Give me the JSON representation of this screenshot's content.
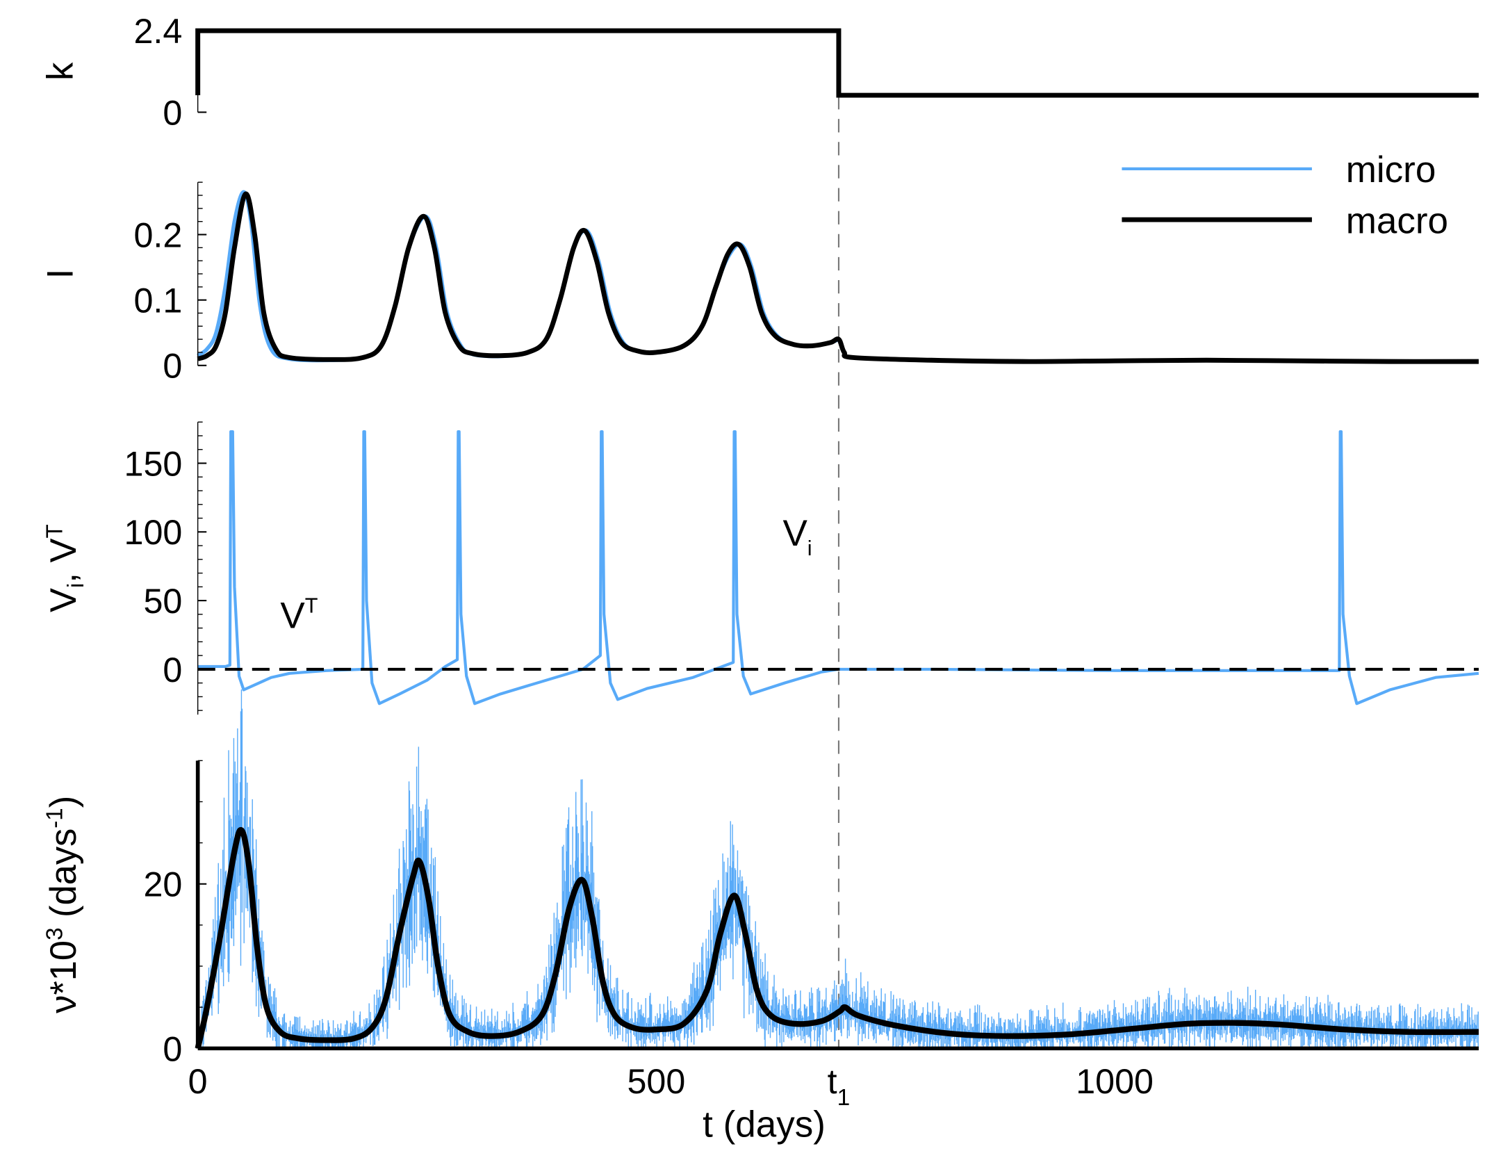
{
  "colors": {
    "micro": "#58aaf8",
    "macro": "#000000",
    "t1_line": "#777777"
  },
  "chart_data": {
    "type": "line",
    "xlabel": "t (days)",
    "xlim": [
      0,
      1397
    ],
    "xticks": [
      {
        "v": 0,
        "label": "0"
      },
      {
        "v": 500,
        "label": "500"
      },
      {
        "v": 699,
        "label": "t",
        "sub": "1"
      },
      {
        "v": 1000,
        "label": "1000"
      }
    ],
    "t1": 699,
    "legend": {
      "position": "top-right",
      "entries": [
        {
          "name": "micro"
        },
        {
          "name": "macro"
        }
      ]
    },
    "panels": [
      {
        "id": "k",
        "ylabel": "k",
        "ylim": [
          0,
          2.4
        ],
        "yticks": [
          {
            "v": 0,
            "label": "0"
          },
          {
            "v": 2.4,
            "label": "2.4"
          }
        ],
        "series": [
          {
            "name": "macro",
            "points": [
              [
                0,
                0.5
              ],
              [
                0,
                2.4
              ],
              [
                699,
                2.4
              ],
              [
                699,
                0.5
              ],
              [
                1397,
                0.5
              ]
            ]
          }
        ]
      },
      {
        "id": "I",
        "ylabel": "I",
        "ylim": [
          0,
          0.28
        ],
        "yticks": [
          {
            "v": 0,
            "label": "0"
          },
          {
            "v": 0.1,
            "label": "0.1"
          },
          {
            "v": 0.2,
            "label": "0.2"
          }
        ],
        "series": [
          {
            "name": "micro",
            "points": [
              [
                0,
                0.015
              ],
              [
                10,
                0.025
              ],
              [
                20,
                0.05
              ],
              [
                30,
                0.12
              ],
              [
                40,
                0.22
              ],
              [
                50,
                0.265
              ],
              [
                58,
                0.22
              ],
              [
                68,
                0.09
              ],
              [
                80,
                0.025
              ],
              [
                100,
                0.01
              ],
              [
                145,
                0.008
              ],
              [
                180,
                0.012
              ],
              [
                200,
                0.03
              ],
              [
                215,
                0.09
              ],
              [
                230,
                0.18
              ],
              [
                248,
                0.228
              ],
              [
                260,
                0.18
              ],
              [
                272,
                0.08
              ],
              [
                287,
                0.03
              ],
              [
                300,
                0.017
              ],
              [
                330,
                0.014
              ],
              [
                360,
                0.02
              ],
              [
                380,
                0.04
              ],
              [
                395,
                0.1
              ],
              [
                410,
                0.18
              ],
              [
                424,
                0.206
              ],
              [
                437,
                0.16
              ],
              [
                450,
                0.08
              ],
              [
                464,
                0.035
              ],
              [
                480,
                0.022
              ],
              [
                500,
                0.02
              ],
              [
                530,
                0.03
              ],
              [
                550,
                0.06
              ],
              [
                565,
                0.12
              ],
              [
                578,
                0.165
              ],
              [
                592,
                0.185
              ],
              [
                604,
                0.15
              ],
              [
                617,
                0.08
              ],
              [
                632,
                0.045
              ],
              [
                650,
                0.032
              ],
              [
                670,
                0.03
              ],
              [
                690,
                0.035
              ],
              [
                699,
                0.04
              ]
            ]
          },
          {
            "name": "macro",
            "points": [
              [
                0,
                0.01
              ],
              [
                10,
                0.015
              ],
              [
                20,
                0.03
              ],
              [
                30,
                0.08
              ],
              [
                40,
                0.18
              ],
              [
                52,
                0.262
              ],
              [
                62,
                0.2
              ],
              [
                72,
                0.08
              ],
              [
                85,
                0.025
              ],
              [
                100,
                0.012
              ],
              [
                145,
                0.009
              ],
              [
                180,
                0.012
              ],
              [
                200,
                0.03
              ],
              [
                215,
                0.09
              ],
              [
                230,
                0.18
              ],
              [
                246,
                0.228
              ],
              [
                258,
                0.18
              ],
              [
                270,
                0.08
              ],
              [
                285,
                0.03
              ],
              [
                300,
                0.018
              ],
              [
                330,
                0.015
              ],
              [
                360,
                0.02
              ],
              [
                380,
                0.04
              ],
              [
                395,
                0.1
              ],
              [
                410,
                0.18
              ],
              [
                422,
                0.206
              ],
              [
                435,
                0.16
              ],
              [
                448,
                0.08
              ],
              [
                462,
                0.035
              ],
              [
                480,
                0.022
              ],
              [
                500,
                0.02
              ],
              [
                530,
                0.03
              ],
              [
                550,
                0.06
              ],
              [
                565,
                0.12
              ],
              [
                578,
                0.17
              ],
              [
                590,
                0.185
              ],
              [
                602,
                0.15
              ],
              [
                615,
                0.08
              ],
              [
                630,
                0.045
              ],
              [
                650,
                0.032
              ],
              [
                670,
                0.03
              ],
              [
                690,
                0.035
              ],
              [
                699,
                0.04
              ],
              [
                705,
                0.02
              ],
              [
                715,
                0.012
              ],
              [
                800,
                0.008
              ],
              [
                900,
                0.006
              ],
              [
                1000,
                0.007
              ],
              [
                1100,
                0.008
              ],
              [
                1200,
                0.007
              ],
              [
                1300,
                0.006
              ],
              [
                1397,
                0.006
              ]
            ]
          }
        ]
      },
      {
        "id": "V",
        "ylabel": "V",
        "ylabel_sub": "i",
        "ylabel_mid": ", V",
        "ylabel_sup": "T",
        "ylim": [
          -33,
          180
        ],
        "yticks": [
          {
            "v": 0,
            "label": "0"
          },
          {
            "v": 50,
            "label": "50"
          },
          {
            "v": 100,
            "label": "100"
          },
          {
            "v": 150,
            "label": "150"
          }
        ],
        "annotations": [
          {
            "text": "V",
            "sup": "T",
            "t": 90,
            "v": 30
          },
          {
            "text": "V",
            "sub": "i",
            "t": 638,
            "v": 90
          }
        ],
        "series": [
          {
            "name": "V_i",
            "points": [
              [
                0,
                2
              ],
              [
                30,
                2
              ],
              [
                35,
                3
              ],
              [
                36,
                173
              ],
              [
                38,
                173
              ],
              [
                40,
                60
              ],
              [
                45,
                -5
              ],
              [
                50,
                -15
              ],
              [
                60,
                -12
              ],
              [
                80,
                -6
              ],
              [
                100,
                -3
              ],
              [
                140,
                -1
              ],
              [
                180,
                0
              ],
              [
                181,
                173
              ],
              [
                182,
                173
              ],
              [
                184,
                50
              ],
              [
                190,
                -10
              ],
              [
                198,
                -25
              ],
              [
                220,
                -18
              ],
              [
                250,
                -8
              ],
              [
                270,
                2
              ],
              [
                283,
                7
              ],
              [
                284,
                173
              ],
              [
                285,
                173
              ],
              [
                287,
                40
              ],
              [
                293,
                -5
              ],
              [
                302,
                -25
              ],
              [
                330,
                -18
              ],
              [
                380,
                -8
              ],
              [
                420,
                0
              ],
              [
                439,
                10
              ],
              [
                440,
                173
              ],
              [
                441,
                173
              ],
              [
                443,
                40
              ],
              [
                450,
                -10
              ],
              [
                458,
                -22
              ],
              [
                490,
                -14
              ],
              [
                540,
                -6
              ],
              [
                584,
                5
              ],
              [
                585,
                173
              ],
              [
                586,
                173
              ],
              [
                588,
                40
              ],
              [
                595,
                -5
              ],
              [
                603,
                -18
              ],
              [
                640,
                -10
              ],
              [
                680,
                -2
              ],
              [
                699,
                0
              ],
              [
                800,
                0
              ],
              [
                1000,
                -1
              ],
              [
                1200,
                -1
              ],
              [
                1245,
                -1
              ],
              [
                1246,
                173
              ],
              [
                1247,
                173
              ],
              [
                1249,
                40
              ],
              [
                1256,
                -5
              ],
              [
                1264,
                -25
              ],
              [
                1300,
                -15
              ],
              [
                1350,
                -6
              ],
              [
                1397,
                -3
              ]
            ]
          },
          {
            "name": "V_T",
            "points": [
              [
                0,
                0
              ],
              [
                1397,
                0
              ]
            ]
          }
        ]
      },
      {
        "id": "nu",
        "ylabel": "ν*10",
        "ylabel_sup": "3",
        "ylabel_mid": " (days",
        "ylabel_sup2": "-1",
        "ylabel_end": ")",
        "ylim": [
          0,
          35
        ],
        "yticks": [
          {
            "v": 0,
            "label": "0"
          },
          {
            "v": 20,
            "label": "20"
          }
        ],
        "series": [
          {
            "name": "micro",
            "noisy": true,
            "base": "macro"
          },
          {
            "name": "macro",
            "points": [
              [
                0,
                0
              ],
              [
                10,
                5
              ],
              [
                25,
                14
              ],
              [
                40,
                24
              ],
              [
                48,
                26.5
              ],
              [
                56,
                22
              ],
              [
                65,
                12
              ],
              [
                75,
                5
              ],
              [
                90,
                2
              ],
              [
                110,
                1.2
              ],
              [
                140,
                1
              ],
              [
                170,
                1.2
              ],
              [
                190,
                2.5
              ],
              [
                205,
                6
              ],
              [
                220,
                14
              ],
              [
                235,
                21
              ],
              [
                242,
                22.7
              ],
              [
                252,
                18
              ],
              [
                262,
                10
              ],
              [
                275,
                4
              ],
              [
                295,
                2
              ],
              [
                320,
                1.5
              ],
              [
                350,
                2
              ],
              [
                375,
                4
              ],
              [
                390,
                9
              ],
              [
                405,
                17
              ],
              [
                419,
                20.5
              ],
              [
                430,
                16
              ],
              [
                442,
                8
              ],
              [
                455,
                4
              ],
              [
                475,
                2.5
              ],
              [
                500,
                2.3
              ],
              [
                530,
                3
              ],
              [
                555,
                7
              ],
              [
                570,
                14
              ],
              [
                585,
                18.6
              ],
              [
                597,
                14
              ],
              [
                610,
                7
              ],
              [
                625,
                4
              ],
              [
                650,
                3
              ],
              [
                680,
                3.3
              ],
              [
                700,
                4.5
              ],
              [
                706,
                5
              ],
              [
                720,
                4
              ],
              [
                760,
                2.8
              ],
              [
                820,
                1.8
              ],
              [
                880,
                1.5
              ],
              [
                950,
                1.7
              ],
              [
                1020,
                2.4
              ],
              [
                1080,
                3
              ],
              [
                1130,
                3.1
              ],
              [
                1180,
                2.9
              ],
              [
                1250,
                2.3
              ],
              [
                1320,
                2
              ],
              [
                1397,
                2
              ]
            ]
          }
        ]
      }
    ]
  }
}
